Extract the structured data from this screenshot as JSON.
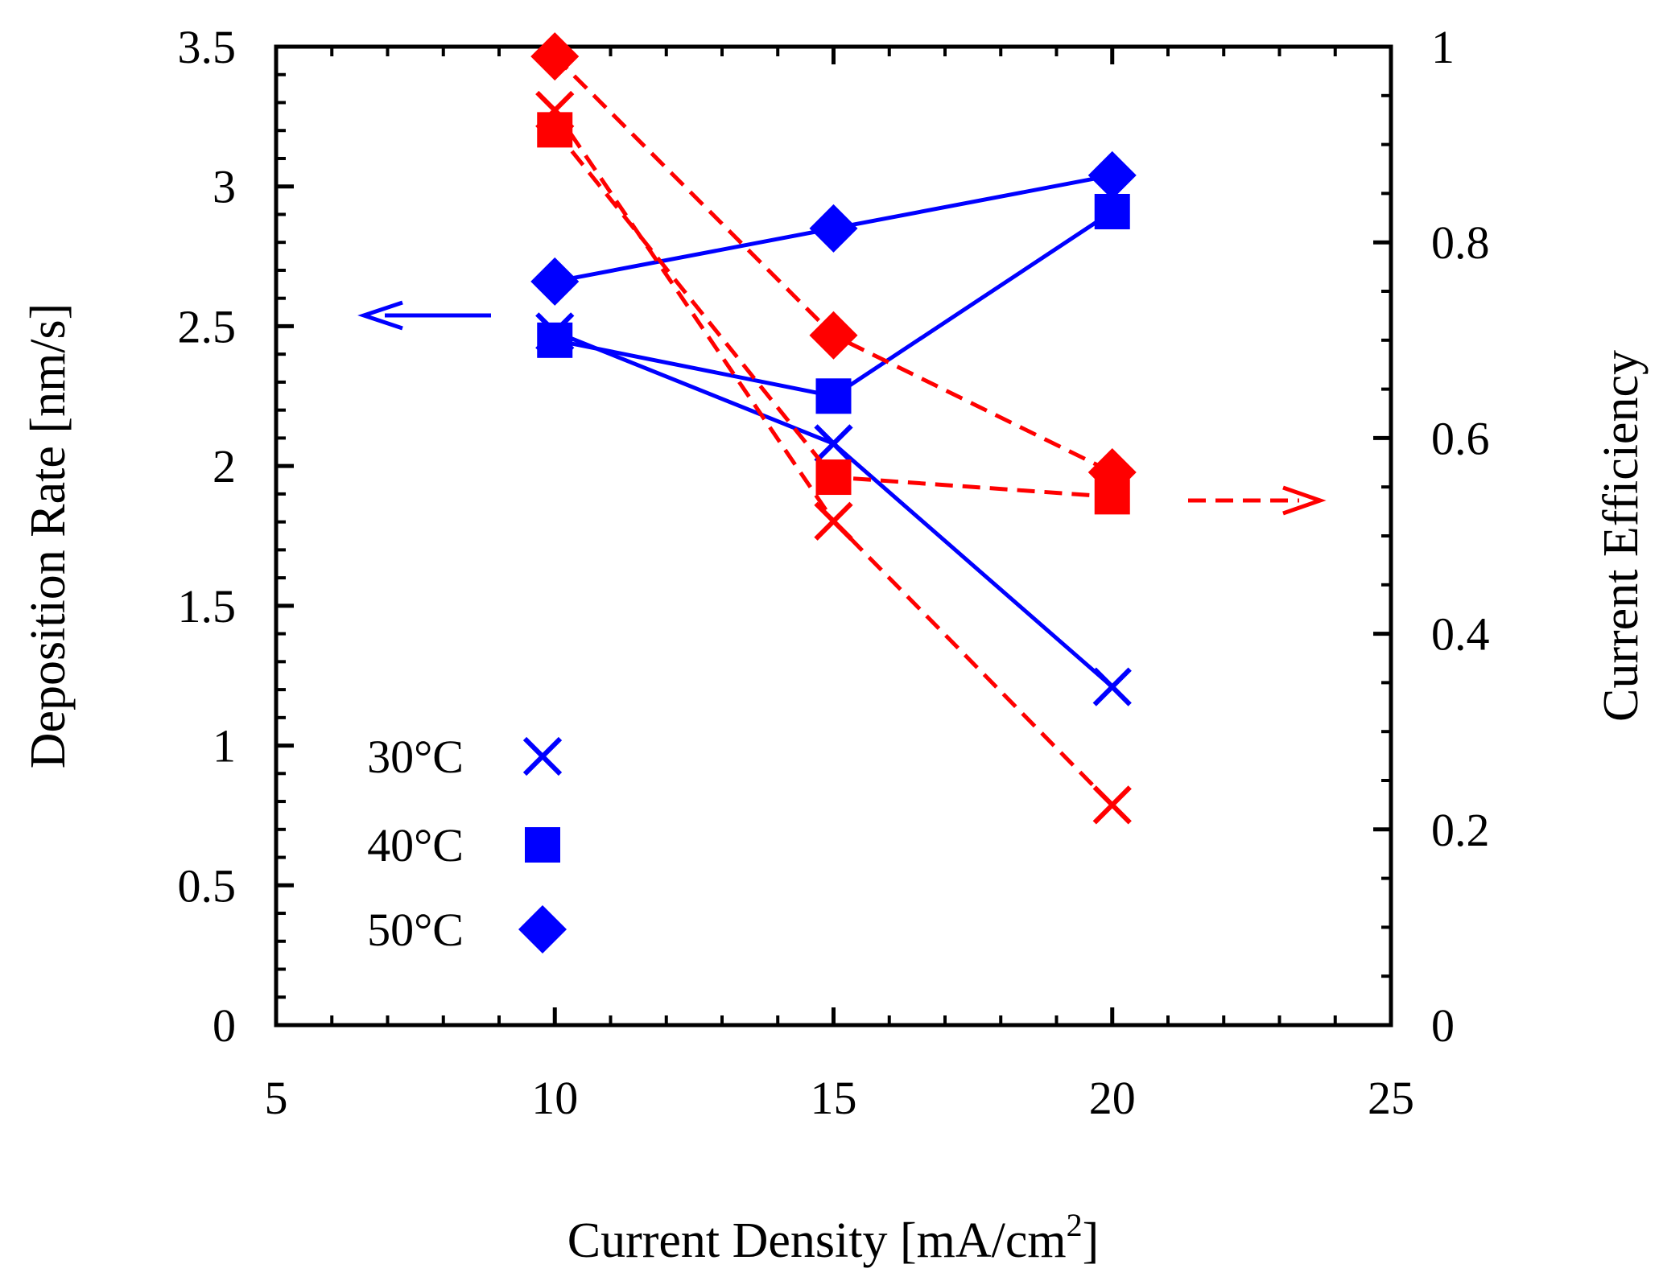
{
  "chart_data": {
    "type": "line",
    "title": "",
    "xlabel": "Current Density [mA/cm",
    "xlabel_superscript": "2",
    "xlabel_suffix": "]",
    "ylabel_left": "Deposition Rate [nm/s]",
    "ylabel_right": "Current Efficiency",
    "xlim": [
      5,
      25
    ],
    "ylim_left": [
      0,
      3.5
    ],
    "ylim_right": [
      0,
      1
    ],
    "x_ticks": [
      5,
      10,
      15,
      20,
      25
    ],
    "x_tick_labels": [
      "5",
      "10",
      "15",
      "20",
      "25"
    ],
    "y_left_ticks": [
      0,
      0.5,
      1,
      1.5,
      2,
      2.5,
      3,
      3.5
    ],
    "y_left_tick_labels": [
      "0",
      "0.5",
      "1",
      "1.5",
      "2",
      "2.5",
      "3",
      "3.5"
    ],
    "y_right_ticks": [
      0,
      0.2,
      0.4,
      0.6,
      0.8,
      1
    ],
    "y_right_tick_labels": [
      "0",
      "0.2",
      "0.4",
      "0.6",
      "0.8",
      "1"
    ],
    "x": [
      10,
      15,
      20
    ],
    "series": [
      {
        "name": "30°C",
        "axis": "left",
        "metric": "Deposition Rate",
        "marker": "x",
        "color": "#0000ff",
        "dash": "solid",
        "values": [
          2.48,
          2.08,
          1.21
        ]
      },
      {
        "name": "40°C",
        "axis": "left",
        "metric": "Deposition Rate",
        "marker": "square",
        "color": "#0000ff",
        "dash": "solid",
        "values": [
          2.45,
          2.25,
          2.91
        ]
      },
      {
        "name": "50°C",
        "axis": "left",
        "metric": "Deposition Rate",
        "marker": "diamond",
        "color": "#0000ff",
        "dash": "solid",
        "values": [
          2.66,
          2.85,
          3.04
        ]
      },
      {
        "name": "30°C",
        "axis": "right",
        "metric": "Current Efficiency",
        "marker": "x",
        "color": "#ff0000",
        "dash": "dashed",
        "values": [
          0.935,
          0.515,
          0.225
        ]
      },
      {
        "name": "40°C",
        "axis": "right",
        "metric": "Current Efficiency",
        "marker": "square",
        "color": "#ff0000",
        "dash": "dashed",
        "values": [
          0.915,
          0.56,
          0.54
        ]
      },
      {
        "name": "50°C",
        "axis": "right",
        "metric": "Current Efficiency",
        "marker": "diamond",
        "color": "#ff0000",
        "dash": "dashed",
        "values": [
          0.99,
          0.705,
          0.565
        ]
      }
    ],
    "legend": {
      "position": "bottom-left",
      "entries": [
        {
          "label": "30°C",
          "marker": "x"
        },
        {
          "label": "40°C",
          "marker": "square"
        },
        {
          "label": "50°C",
          "marker": "diamond"
        }
      ],
      "color": "#0000ff"
    },
    "annotations": [
      {
        "type": "arrow",
        "points_to": "left axis",
        "color": "#0000ff",
        "dash": "solid"
      },
      {
        "type": "arrow",
        "points_to": "right axis",
        "color": "#ff0000",
        "dash": "dashed"
      }
    ]
  }
}
